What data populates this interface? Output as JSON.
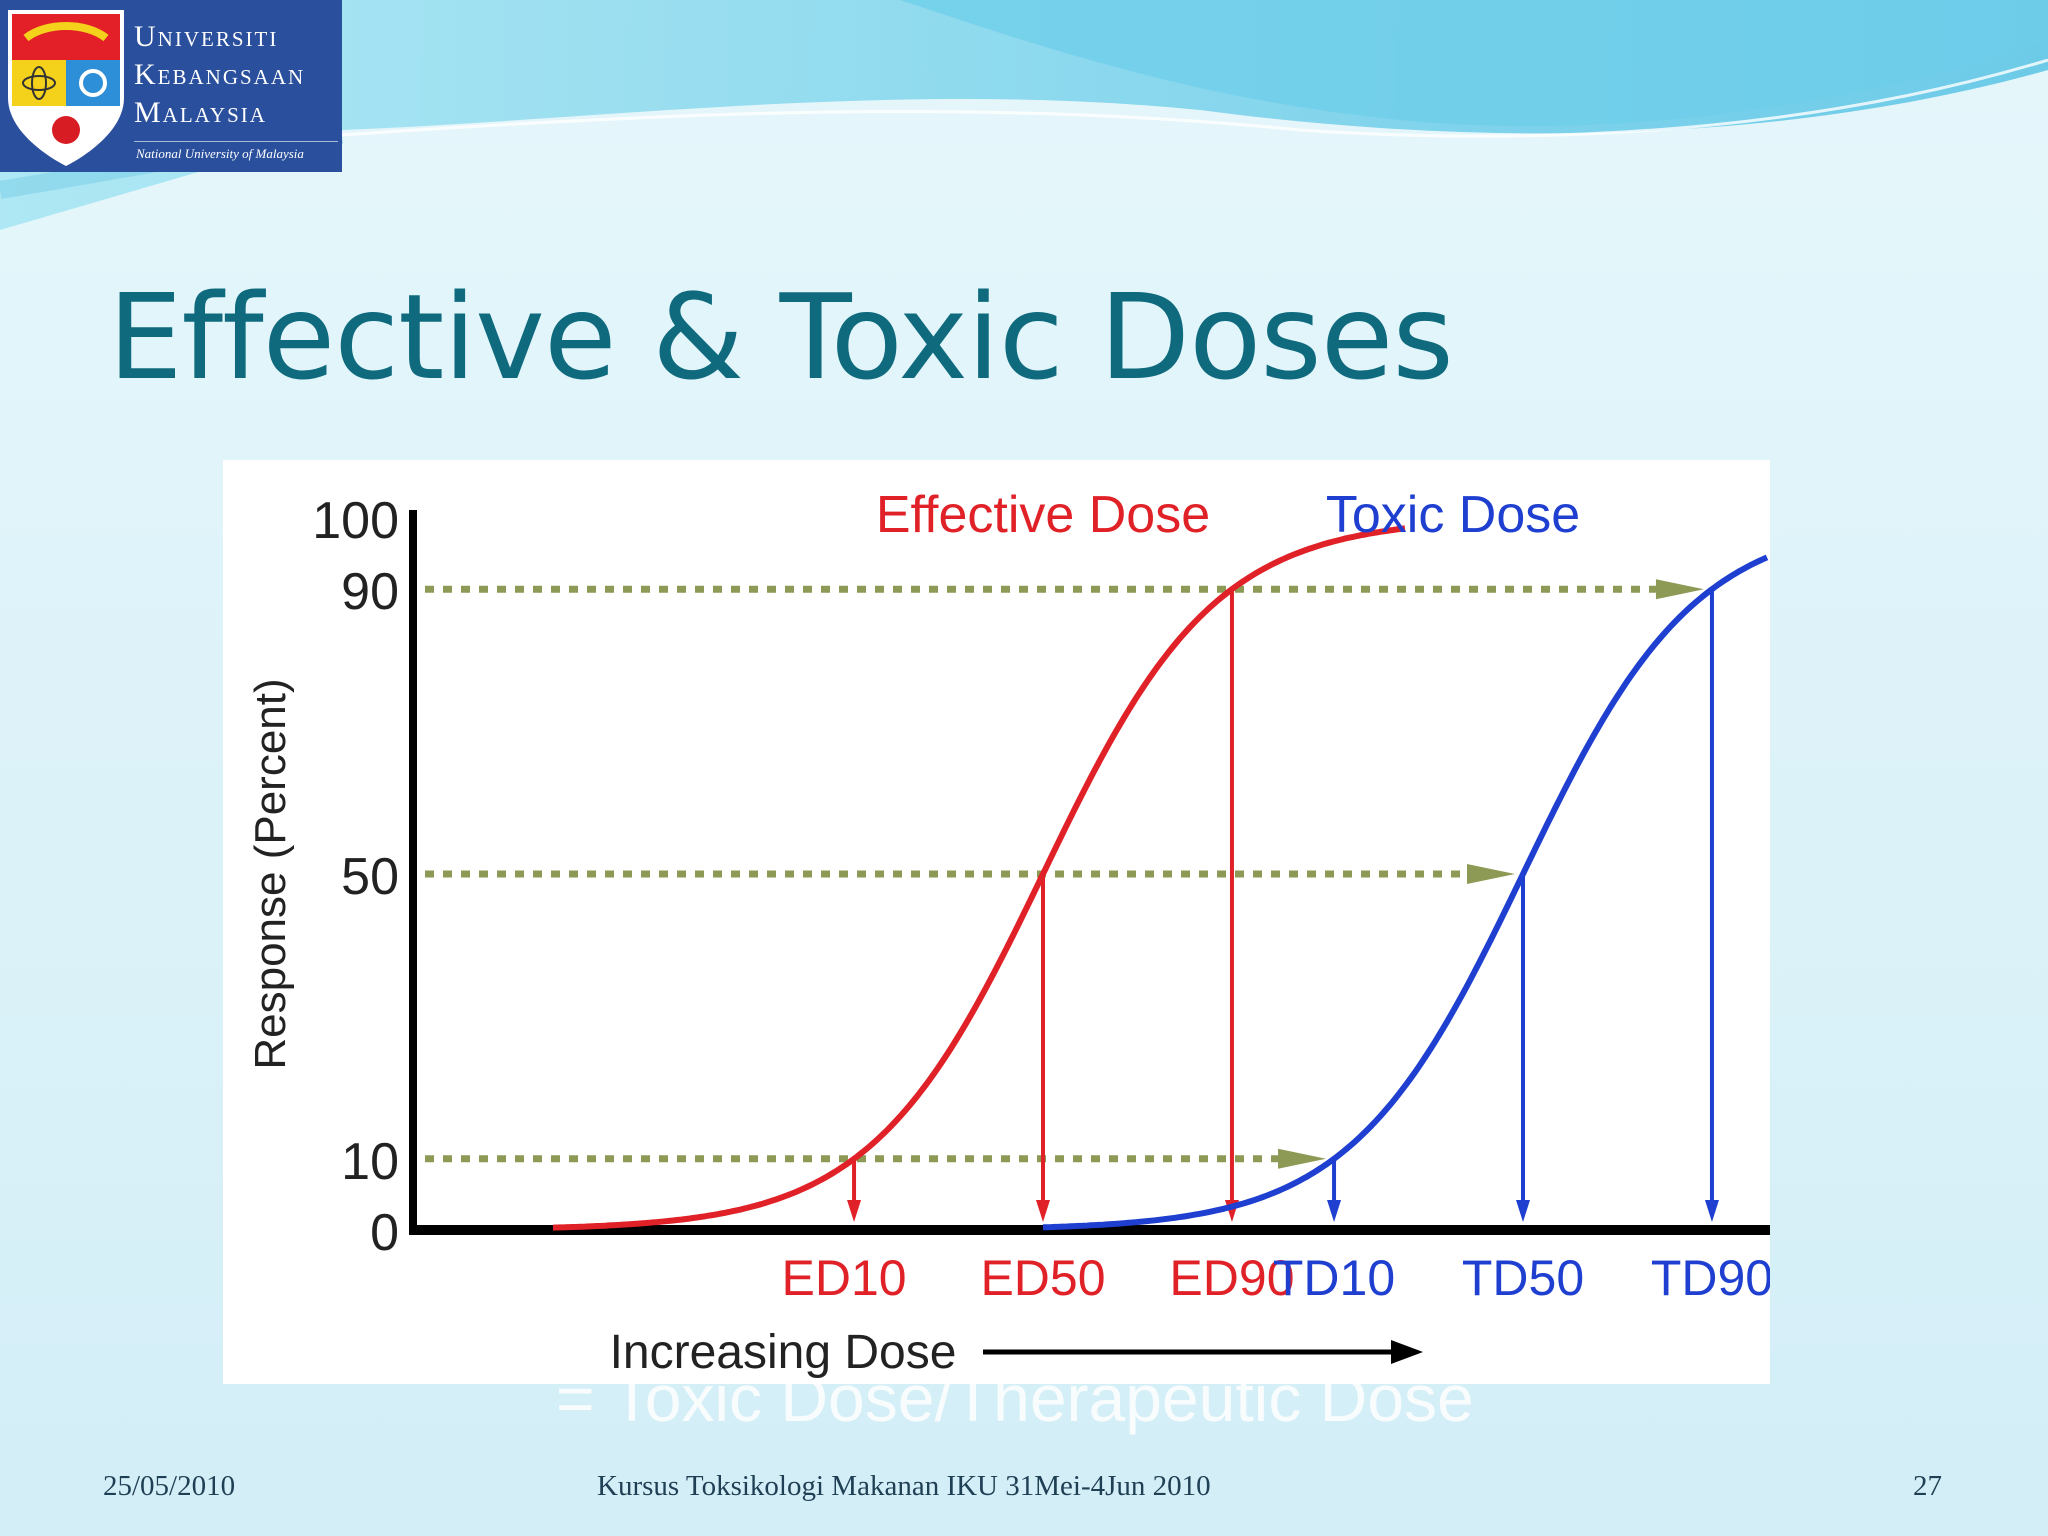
{
  "slide": {
    "title": "Effective & Toxic Doses",
    "ghost_text": "= Toxic Dose/Therapeutic Dose",
    "footer": {
      "date": "25/05/2010",
      "course": "Kursus Toksikologi Makanan IKU 31Mei-4Jun 2010",
      "page": "27"
    }
  },
  "logo": {
    "line1": "Universiti",
    "line2": "Kebangsaan",
    "line3": "Malaysia",
    "tagline": "National University of Malaysia"
  },
  "chart_data": {
    "type": "line",
    "ylabel": "Response (Percent)",
    "xlabel": "Increasing Dose",
    "y_ticks": [
      "0",
      "10",
      "50",
      "90",
      "100"
    ],
    "ylim": [
      0,
      100
    ],
    "series": [
      {
        "name": "Effective Dose",
        "color": "#e02228",
        "markers": [
          {
            "label": "ED10",
            "response": 10
          },
          {
            "label": "ED50",
            "response": 50
          },
          {
            "label": "ED90",
            "response": 90
          }
        ]
      },
      {
        "name": "Toxic Dose",
        "color": "#1e3fd0",
        "markers": [
          {
            "label": "TD10",
            "response": 10
          },
          {
            "label": "TD50",
            "response": 50
          },
          {
            "label": "TD90",
            "response": 90
          }
        ]
      }
    ],
    "reference_lines": [
      10,
      50,
      90
    ],
    "reference_color": "#8c9a55"
  }
}
